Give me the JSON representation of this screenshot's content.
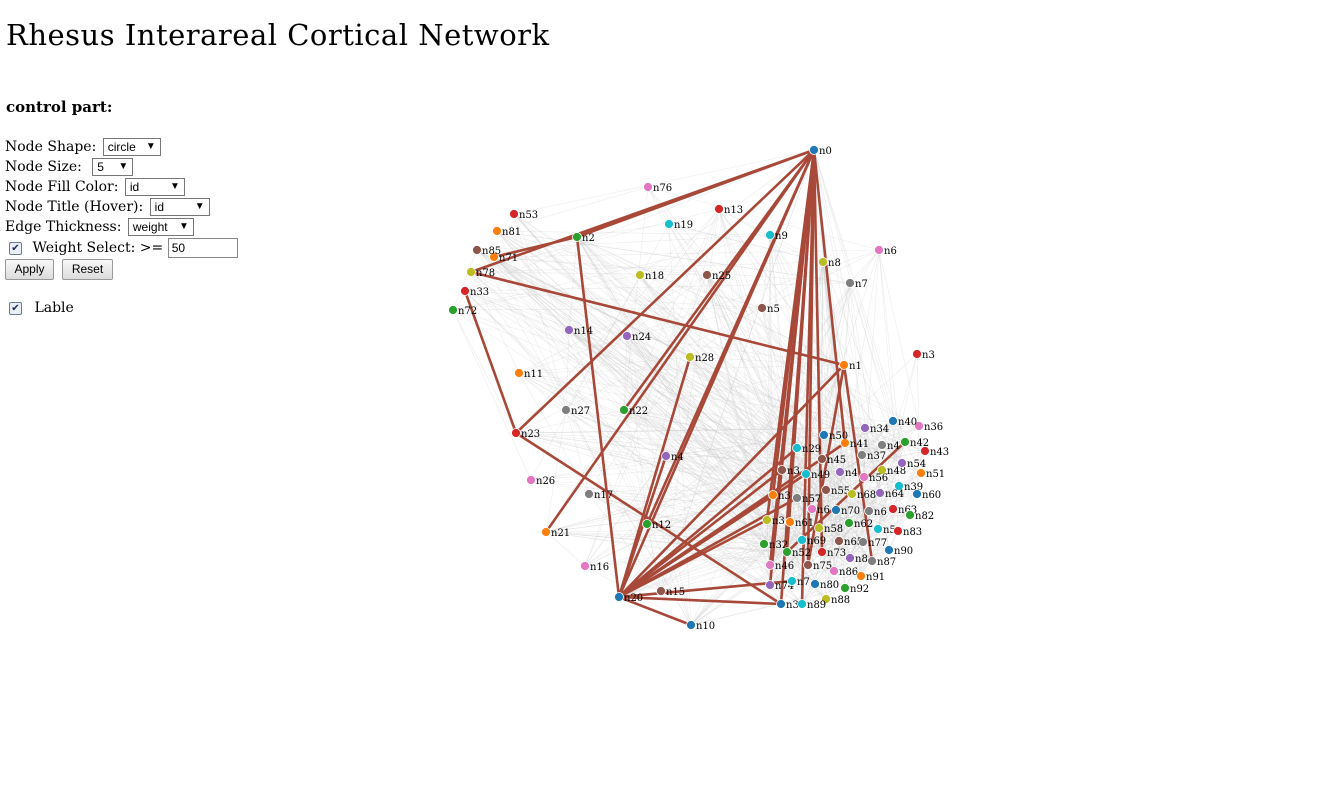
{
  "title": "Rhesus Interareal Cortical Network",
  "controls": {
    "heading": "control part:",
    "node_shape": {
      "label": "Node Shape:",
      "value": "circle"
    },
    "node_size": {
      "label": "Node Size:",
      "value": "5"
    },
    "node_fill": {
      "label": "Node Fill Color:",
      "value": "id"
    },
    "node_title": {
      "label": "Node Title (Hover):",
      "value": "id"
    },
    "edge_thickness": {
      "label": "Edge Thickness:",
      "value": "weight"
    },
    "weight_select": {
      "label": "Weight Select: >=",
      "value": "50"
    },
    "apply": "Apply",
    "reset": "Reset",
    "lable": "Lable"
  },
  "graph": {
    "strong_edge_color": "#a84838",
    "nodes": [
      {
        "id": "n0",
        "c": "#1f77b4"
      },
      {
        "id": "n1",
        "c": "#ff7f0e"
      },
      {
        "id": "n2",
        "c": "#2ca02c"
      },
      {
        "id": "n3",
        "c": "#d62728"
      },
      {
        "id": "n4",
        "c": "#9467bd"
      },
      {
        "id": "n5",
        "c": "#8c564b"
      },
      {
        "id": "n6",
        "c": "#e377c2"
      },
      {
        "id": "n7",
        "c": "#7f7f7f"
      },
      {
        "id": "n8",
        "c": "#bcbd22"
      },
      {
        "id": "n9",
        "c": "#17becf"
      },
      {
        "id": "n10",
        "c": "#1f77b4"
      },
      {
        "id": "n11",
        "c": "#ff7f0e"
      },
      {
        "id": "n12",
        "c": "#2ca02c"
      },
      {
        "id": "n13",
        "c": "#d62728"
      },
      {
        "id": "n14",
        "c": "#9467bd"
      },
      {
        "id": "n15",
        "c": "#8c564b"
      },
      {
        "id": "n16",
        "c": "#e377c2"
      },
      {
        "id": "n17",
        "c": "#7f7f7f"
      },
      {
        "id": "n18",
        "c": "#bcbd22"
      },
      {
        "id": "n19",
        "c": "#17becf"
      },
      {
        "id": "n20",
        "c": "#1f77b4"
      },
      {
        "id": "n21",
        "c": "#ff7f0e"
      },
      {
        "id": "n22",
        "c": "#2ca02c"
      },
      {
        "id": "n23",
        "c": "#d62728"
      },
      {
        "id": "n24",
        "c": "#9467bd"
      },
      {
        "id": "n25",
        "c": "#8c564b"
      },
      {
        "id": "n26",
        "c": "#e377c2"
      },
      {
        "id": "n27",
        "c": "#7f7f7f"
      },
      {
        "id": "n28",
        "c": "#bcbd22"
      },
      {
        "id": "n29",
        "c": "#17becf"
      },
      {
        "id": "n3",
        "c": "#1f77b4"
      },
      {
        "id": "n3",
        "c": "#ff7f0e"
      },
      {
        "id": "n32",
        "c": "#2ca02c"
      },
      {
        "id": "n33",
        "c": "#d62728"
      },
      {
        "id": "n34",
        "c": "#9467bd"
      },
      {
        "id": "n3",
        "c": "#8c564b"
      },
      {
        "id": "n36",
        "c": "#e377c2"
      },
      {
        "id": "n37",
        "c": "#7f7f7f"
      },
      {
        "id": "n3",
        "c": "#bcbd22"
      },
      {
        "id": "n39",
        "c": "#17becf"
      },
      {
        "id": "n40",
        "c": "#1f77b4"
      },
      {
        "id": "n41",
        "c": "#ff7f0e"
      },
      {
        "id": "n42",
        "c": "#2ca02c"
      },
      {
        "id": "n43",
        "c": "#d62728"
      },
      {
        "id": "n4",
        "c": "#9467bd"
      },
      {
        "id": "n45",
        "c": "#8c564b"
      },
      {
        "id": "n46",
        "c": "#e377c2"
      },
      {
        "id": "n4",
        "c": "#7f7f7f"
      },
      {
        "id": "n48",
        "c": "#bcbd22"
      },
      {
        "id": "n49",
        "c": "#17becf"
      },
      {
        "id": "n50",
        "c": "#1f77b4"
      },
      {
        "id": "n51",
        "c": "#ff7f0e"
      },
      {
        "id": "n52",
        "c": "#2ca02c"
      },
      {
        "id": "n53",
        "c": "#d62728"
      },
      {
        "id": "n54",
        "c": "#9467bd"
      },
      {
        "id": "n55",
        "c": "#8c564b"
      },
      {
        "id": "n56",
        "c": "#e377c2"
      },
      {
        "id": "n57",
        "c": "#7f7f7f"
      },
      {
        "id": "n58",
        "c": "#bcbd22"
      },
      {
        "id": "n5",
        "c": "#17becf"
      },
      {
        "id": "n60",
        "c": "#1f77b4"
      },
      {
        "id": "n61",
        "c": "#ff7f0e"
      },
      {
        "id": "n62",
        "c": "#2ca02c"
      },
      {
        "id": "n63",
        "c": "#d62728"
      },
      {
        "id": "n64",
        "c": "#9467bd"
      },
      {
        "id": "n65",
        "c": "#8c564b"
      },
      {
        "id": "n6",
        "c": "#e377c2"
      },
      {
        "id": "n6",
        "c": "#7f7f7f"
      },
      {
        "id": "n68",
        "c": "#bcbd22"
      },
      {
        "id": "n69",
        "c": "#17becf"
      },
      {
        "id": "n70",
        "c": "#1f77b4"
      },
      {
        "id": "n71",
        "c": "#ff7f0e"
      },
      {
        "id": "n72",
        "c": "#2ca02c"
      },
      {
        "id": "n73",
        "c": "#d62728"
      },
      {
        "id": "n74",
        "c": "#9467bd"
      },
      {
        "id": "n75",
        "c": "#8c564b"
      },
      {
        "id": "n76",
        "c": "#e377c2"
      },
      {
        "id": "n77",
        "c": "#7f7f7f"
      },
      {
        "id": "n78",
        "c": "#bcbd22"
      },
      {
        "id": "n7",
        "c": "#17becf"
      },
      {
        "id": "n80",
        "c": "#1f77b4"
      },
      {
        "id": "n81",
        "c": "#ff7f0e"
      },
      {
        "id": "n82",
        "c": "#2ca02c"
      },
      {
        "id": "n83",
        "c": "#d62728"
      },
      {
        "id": "n8",
        "c": "#9467bd"
      },
      {
        "id": "n85",
        "c": "#8c564b"
      },
      {
        "id": "n86",
        "c": "#e377c2"
      },
      {
        "id": "n87",
        "c": "#7f7f7f"
      },
      {
        "id": "n88",
        "c": "#bcbd22"
      },
      {
        "id": "n89",
        "c": "#17becf"
      },
      {
        "id": "n90",
        "c": "#1f77b4"
      },
      {
        "id": "n91",
        "c": "#ff7f0e"
      },
      {
        "id": "n92",
        "c": "#2ca02c"
      }
    ],
    "strong_edges": [
      [
        0,
        20
      ],
      [
        0,
        2
      ],
      [
        0,
        78
      ],
      [
        0,
        23
      ],
      [
        0,
        21
      ],
      [
        0,
        22
      ],
      [
        0,
        30
      ],
      [
        0,
        12
      ],
      [
        0,
        46
      ],
      [
        0,
        31
      ],
      [
        0,
        52
      ],
      [
        0,
        75
      ],
      [
        0,
        89
      ],
      [
        0,
        74
      ],
      [
        0,
        41
      ],
      [
        0,
        73
      ],
      [
        0,
        38
      ],
      [
        2,
        20
      ],
      [
        2,
        71
      ],
      [
        78,
        1
      ],
      [
        23,
        33
      ],
      [
        23,
        30
      ],
      [
        1,
        20
      ],
      [
        1,
        75
      ],
      [
        28,
        20
      ],
      [
        4,
        20
      ],
      [
        20,
        30
      ],
      [
        20,
        79
      ],
      [
        20,
        35
      ],
      [
        20,
        57
      ],
      [
        20,
        31
      ],
      [
        20,
        49
      ],
      [
        20,
        41
      ],
      [
        20,
        38
      ],
      [
        20,
        29
      ],
      [
        20,
        10
      ],
      [
        1,
        87
      ],
      [
        52,
        42
      ]
    ]
  }
}
